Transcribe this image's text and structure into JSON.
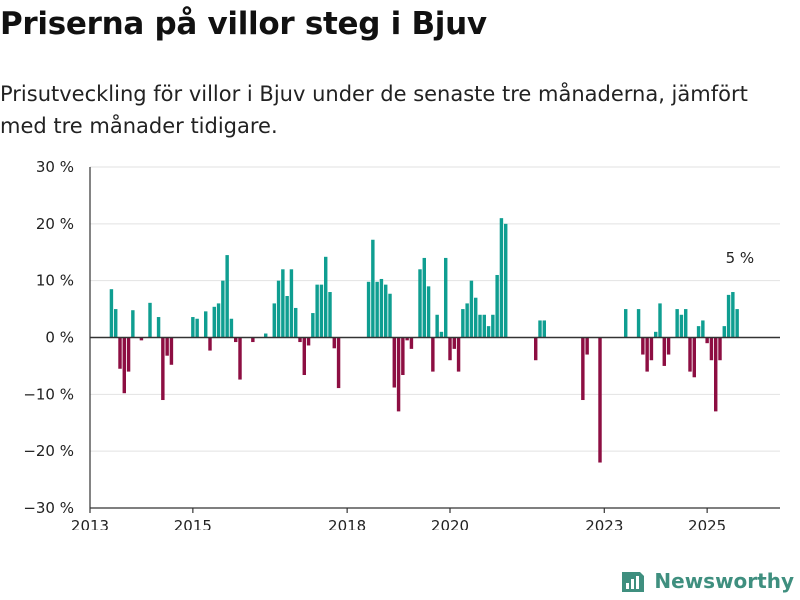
{
  "title": "Priserna på villor steg i Bjuv",
  "subtitle": "Prisutveckling för villor i Bjuv under de senaste tre månaderna, jämfört med tre månader tidigare.",
  "brand": {
    "name": "Newsworthy",
    "color": "#3f8f7f"
  },
  "colors": {
    "positive": "#0f9e91",
    "negative": "#8d0e42",
    "axis": "#333333",
    "grid": "#e2e2e2"
  },
  "chart_data": {
    "type": "bar",
    "x_axis": {
      "ticks": [
        "2013",
        "2015",
        "2018",
        "2020",
        "2023",
        "2025"
      ],
      "range": [
        "2013-01",
        "2026-06"
      ]
    },
    "y_axis": {
      "ticks": [
        "30 %",
        "20 %",
        "10 %",
        "0 %",
        "−10 %",
        "−20 %",
        "−30 %"
      ],
      "ylim": [
        -30,
        30
      ],
      "unit": "%"
    },
    "grid": true,
    "annotation": {
      "text": "5 %",
      "x": "2025-07",
      "y": 5
    },
    "series": [
      {
        "values": [
          [
            "2013-06",
            8.5
          ],
          [
            "2013-07",
            5.0
          ],
          [
            "2013-08",
            -5.5
          ],
          [
            "2013-09",
            -9.8
          ],
          [
            "2013-10",
            -6.0
          ],
          [
            "2013-11",
            4.8
          ],
          [
            "2014-01",
            -0.5
          ],
          [
            "2014-03",
            6.1
          ],
          [
            "2014-05",
            3.6
          ],
          [
            "2014-06",
            -11.0
          ],
          [
            "2014-07",
            -3.2
          ],
          [
            "2014-08",
            -4.8
          ],
          [
            "2015-01",
            3.6
          ],
          [
            "2015-02",
            3.3
          ],
          [
            "2015-04",
            4.6
          ],
          [
            "2015-05",
            -2.3
          ],
          [
            "2015-06",
            5.4
          ],
          [
            "2015-07",
            6.0
          ],
          [
            "2015-08",
            10.0
          ],
          [
            "2015-09",
            14.5
          ],
          [
            "2015-10",
            3.3
          ],
          [
            "2015-11",
            -0.8
          ],
          [
            "2015-12",
            -7.4
          ],
          [
            "2016-03",
            -0.8
          ],
          [
            "2016-06",
            0.7
          ],
          [
            "2016-08",
            6.0
          ],
          [
            "2016-09",
            10.0
          ],
          [
            "2016-10",
            12.0
          ],
          [
            "2016-11",
            7.3
          ],
          [
            "2016-12",
            12.0
          ],
          [
            "2017-01",
            5.2
          ],
          [
            "2017-02",
            -0.8
          ],
          [
            "2017-03",
            -6.6
          ],
          [
            "2017-04",
            -1.4
          ],
          [
            "2017-05",
            4.3
          ],
          [
            "2017-06",
            9.3
          ],
          [
            "2017-07",
            9.3
          ],
          [
            "2017-08",
            14.2
          ],
          [
            "2017-09",
            8.0
          ],
          [
            "2017-10",
            -1.9
          ],
          [
            "2017-11",
            -8.9
          ],
          [
            "2018-06",
            9.8
          ],
          [
            "2018-07",
            17.2
          ],
          [
            "2018-08",
            9.8
          ],
          [
            "2018-09",
            10.3
          ],
          [
            "2018-10",
            9.3
          ],
          [
            "2018-11",
            7.7
          ],
          [
            "2018-12",
            -8.8
          ],
          [
            "2019-01",
            -13.0
          ],
          [
            "2019-02",
            -6.6
          ],
          [
            "2019-03",
            -0.5
          ],
          [
            "2019-04",
            -2.0
          ],
          [
            "2019-06",
            12.0
          ],
          [
            "2019-07",
            14.0
          ],
          [
            "2019-08",
            9.0
          ],
          [
            "2019-09",
            -6.0
          ],
          [
            "2019-10",
            4.0
          ],
          [
            "2019-11",
            1.0
          ],
          [
            "2019-12",
            14.0
          ],
          [
            "2020-01",
            -4.0
          ],
          [
            "2020-02",
            -2.0
          ],
          [
            "2020-03",
            -6.0
          ],
          [
            "2020-04",
            5.0
          ],
          [
            "2020-05",
            6.0
          ],
          [
            "2020-06",
            10.0
          ],
          [
            "2020-07",
            7.0
          ],
          [
            "2020-08",
            4.0
          ],
          [
            "2020-09",
            4.0
          ],
          [
            "2020-10",
            2.0
          ],
          [
            "2020-11",
            4.0
          ],
          [
            "2020-12",
            11.0
          ],
          [
            "2021-01",
            21.0
          ],
          [
            "2021-02",
            20.0
          ],
          [
            "2021-09",
            -4.0
          ],
          [
            "2021-10",
            3.0
          ],
          [
            "2021-11",
            3.0
          ],
          [
            "2022-08",
            -11.0
          ],
          [
            "2022-09",
            -3.0
          ],
          [
            "2022-12",
            -22.0
          ],
          [
            "2023-06",
            5.0
          ],
          [
            "2023-09",
            5.0
          ],
          [
            "2023-10",
            -3.0
          ],
          [
            "2023-11",
            -6.0
          ],
          [
            "2023-12",
            -4.0
          ],
          [
            "2024-01",
            1.0
          ],
          [
            "2024-02",
            6.0
          ],
          [
            "2024-03",
            -5.0
          ],
          [
            "2024-04",
            -3.0
          ],
          [
            "2024-06",
            5.0
          ],
          [
            "2024-07",
            4.0
          ],
          [
            "2024-08",
            5.0
          ],
          [
            "2024-09",
            -6.0
          ],
          [
            "2024-10",
            -7.0
          ],
          [
            "2024-11",
            2.0
          ],
          [
            "2024-12",
            3.0
          ],
          [
            "2025-01",
            -1.0
          ],
          [
            "2025-02",
            -4.0
          ],
          [
            "2025-03",
            -13.0
          ],
          [
            "2025-04",
            -4.0
          ],
          [
            "2025-05",
            2.0
          ],
          [
            "2025-06",
            7.5
          ],
          [
            "2025-07",
            8.0
          ],
          [
            "2025-08",
            5.0
          ]
        ]
      }
    ]
  }
}
